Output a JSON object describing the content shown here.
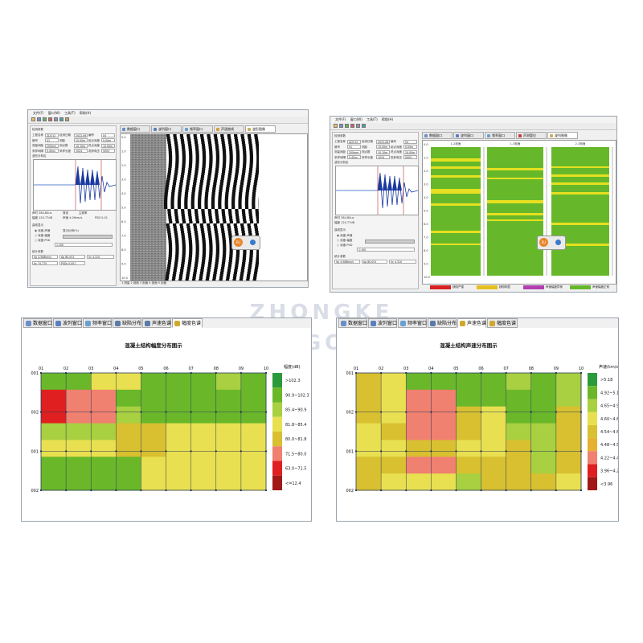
{
  "watermark": {
    "line1": "ZHONGKE",
    "line2": "BEIGONG"
  },
  "top_left": {
    "menu": [
      "文件(F)",
      "窗口(W)",
      "工具(T)",
      "帮助(H)"
    ],
    "tabs": [
      {
        "label": "数据窗口",
        "color": "#6a8fc8"
      },
      {
        "label": "波列窗口",
        "color": "#5c7fc0"
      },
      {
        "label": "频率窗口",
        "color": "#6aa0d0"
      },
      {
        "label": "声速曲线",
        "color": "#d0a040"
      },
      {
        "label": "波形图像",
        "color": "#c8b060"
      }
    ],
    "info_title": "检测参数",
    "info_rows": [
      {
        "k1": "工程名称",
        "v1": "ZJ2212",
        "k2": "检测日期",
        "v2": "2022-06",
        "k3": "编号",
        "v3": "04"
      },
      {
        "k1": "管号",
        "v1": "01",
        "k2": "测距",
        "v2": "10.00m",
        "k3": "起点深度",
        "v3": "0.00m"
      },
      {
        "k1": "测量间距",
        "v1": "200mm",
        "k2": "测点数",
        "v2": "10.10m",
        "k3": "终点深度",
        "v3": "10.00m"
      },
      {
        "k1": "采样间隔",
        "v1": "0.40us",
        "k2": "采样长度",
        "v2": "1024",
        "k3": "发射电压",
        "v3": "500V"
      }
    ],
    "wave_title": "波形分析区",
    "readouts": [
      "声时 384.80us",
      "幅度 120.77dB",
      "首波",
      "主频率",
      "声速 4.09km/s",
      "PSD 0.01"
    ],
    "options": [
      "深度-声速",
      "深度-幅度",
      "深度-PSD"
    ],
    "display_title": "曲线显示",
    "scroll_label": "显示比例(%)",
    "select_value": "1:100",
    "bottom_title": "统计参数",
    "stats": [
      "Vp 4.588km/s",
      "Ap 80.001",
      "Vc 4.310",
      "Ac 74.770",
      "PSDc 0.001"
    ],
    "overlay_badge": "EU",
    "status_text": "1 测量  2 剖面  3 剖面  4 剖面  5 剖面",
    "depth_ticks": [
      "0.0",
      "1.0",
      "2.0",
      "3.0",
      "4.0",
      "5.0",
      "6.0",
      "7.0",
      "8.0",
      "9.0",
      "10.0"
    ]
  },
  "top_right": {
    "menu": [
      "文件(F)",
      "窗口(W)",
      "工具(T)",
      "帮助(H)"
    ],
    "tabs": [
      {
        "label": "数据窗口",
        "color": "#6a8fc8"
      },
      {
        "label": "波列窗口",
        "color": "#5c7fc0"
      },
      {
        "label": "频率窗口",
        "color": "#6aa0d0"
      },
      {
        "label": "声测管位",
        "color": "#c04040"
      },
      {
        "label": "波列图像",
        "color": "#c8b060"
      }
    ],
    "columns": [
      "1-2剖面",
      "1-3剖面",
      "2-3剖面"
    ],
    "legend": [
      {
        "label": "缺陷严重",
        "color": "#d92020"
      },
      {
        "label": "缺陷明显",
        "color": "#e6c020"
      },
      {
        "label": "声速幅度异常",
        "color": "#b040b0"
      },
      {
        "label": "声速幅度正常",
        "color": "#66b82a"
      }
    ],
    "overlay_badge": "EU",
    "depth_ticks": [
      "0.0",
      "1.0",
      "2.0",
      "3.0",
      "4.0",
      "5.0",
      "6.0",
      "7.0",
      "8.0",
      "9.0",
      "10.0"
    ]
  },
  "bottom_left": {
    "tabs": [
      {
        "label": "数据窗口",
        "color": "#6a8fc8"
      },
      {
        "label": "波列窗口",
        "color": "#5c7fc0"
      },
      {
        "label": "频率窗口",
        "color": "#6aa0d0"
      },
      {
        "label": "缺陷分布",
        "color": "#5a7aa8"
      },
      {
        "label": "声速色谱",
        "color": "#5a7aa8"
      },
      {
        "label": "幅度色谱",
        "color": "#d0a830"
      }
    ],
    "selected_tab": 5,
    "title": "混凝土结构幅度分布图示",
    "x_labels": [
      "01",
      "02",
      "03",
      "04",
      "05",
      "06",
      "07",
      "08",
      "09",
      "10"
    ],
    "y_labels": [
      "001",
      "002",
      "001",
      "002"
    ],
    "legend_title": "幅度(dB)",
    "legend": [
      {
        "label": ">102.3",
        "color": "#2a9a3a"
      },
      {
        "label": "90.9~102.3",
        "color": "#6ab82a"
      },
      {
        "label": "85.4~90.9",
        "color": "#a8d040"
      },
      {
        "label": "81.8~85.4",
        "color": "#e8e050"
      },
      {
        "label": "80.0~81.8",
        "color": "#d8c030"
      },
      {
        "label": "71.5~80.0",
        "color": "#f08070"
      },
      {
        "label": "63.0~71.5",
        "color": "#e02020"
      },
      {
        "label": "<=12.4",
        "color": "#a01818"
      }
    ]
  },
  "bottom_right": {
    "tabs": [
      {
        "label": "数据窗口",
        "color": "#6a8fc8"
      },
      {
        "label": "波列窗口",
        "color": "#5c7fc0"
      },
      {
        "label": "频率窗口",
        "color": "#6aa0d0"
      },
      {
        "label": "缺陷分布",
        "color": "#5a7aa8"
      },
      {
        "label": "声速色谱",
        "color": "#d0a830"
      },
      {
        "label": "幅度色谱",
        "color": "#d0a830"
      }
    ],
    "selected_tab": 4,
    "title": "混凝土结构声速分布图示",
    "x_labels": [
      "01",
      "02",
      "03",
      "04",
      "05",
      "06",
      "07",
      "08",
      "09",
      "10"
    ],
    "y_labels": [
      "001",
      "002",
      "001",
      "002"
    ],
    "legend_title": "声速(km/s)",
    "legend": [
      {
        "label": ">5.18",
        "color": "#2a9a3a"
      },
      {
        "label": "4.92~5.18",
        "color": "#6ab82a"
      },
      {
        "label": "4.65~4.92",
        "color": "#a8d040"
      },
      {
        "label": "4.60~4.65",
        "color": "#e8e050"
      },
      {
        "label": "4.54~4.60",
        "color": "#d8c030"
      },
      {
        "label": "4.48~4.54",
        "color": "#e8b030"
      },
      {
        "label": "4.22~4.48",
        "color": "#f08070"
      },
      {
        "label": "3.96~4.22",
        "color": "#e02020"
      },
      {
        "label": "<3.96",
        "color": "#a01818"
      }
    ]
  },
  "heatmap_left": [
    [
      1,
      1,
      3,
      3,
      1,
      1,
      1,
      2,
      1
    ],
    [
      6,
      5,
      5,
      1,
      1,
      1,
      1,
      1,
      1
    ],
    [
      6,
      5,
      5,
      2,
      1,
      1,
      1,
      1,
      1
    ],
    [
      2,
      2,
      2,
      4,
      4,
      3,
      3,
      3,
      3
    ],
    [
      3,
      3,
      3,
      4,
      4,
      3,
      3,
      3,
      3
    ],
    [
      1,
      1,
      1,
      1,
      3,
      3,
      3,
      3,
      3
    ],
    [
      1,
      1,
      1,
      1,
      3,
      3,
      3,
      3,
      3
    ]
  ],
  "heatmap_right": [
    [
      4,
      3,
      1,
      1,
      1,
      1,
      2,
      1,
      2
    ],
    [
      4,
      3,
      6,
      6,
      1,
      1,
      1,
      1,
      2
    ],
    [
      4,
      3,
      6,
      6,
      4,
      3,
      1,
      1,
      4
    ],
    [
      3,
      4,
      6,
      6,
      4,
      3,
      2,
      2,
      4
    ],
    [
      3,
      3,
      4,
      4,
      3,
      3,
      4,
      2,
      4
    ],
    [
      4,
      4,
      6,
      6,
      4,
      4,
      4,
      2,
      4
    ],
    [
      4,
      3,
      3,
      3,
      2,
      4,
      4,
      4,
      3
    ]
  ]
}
